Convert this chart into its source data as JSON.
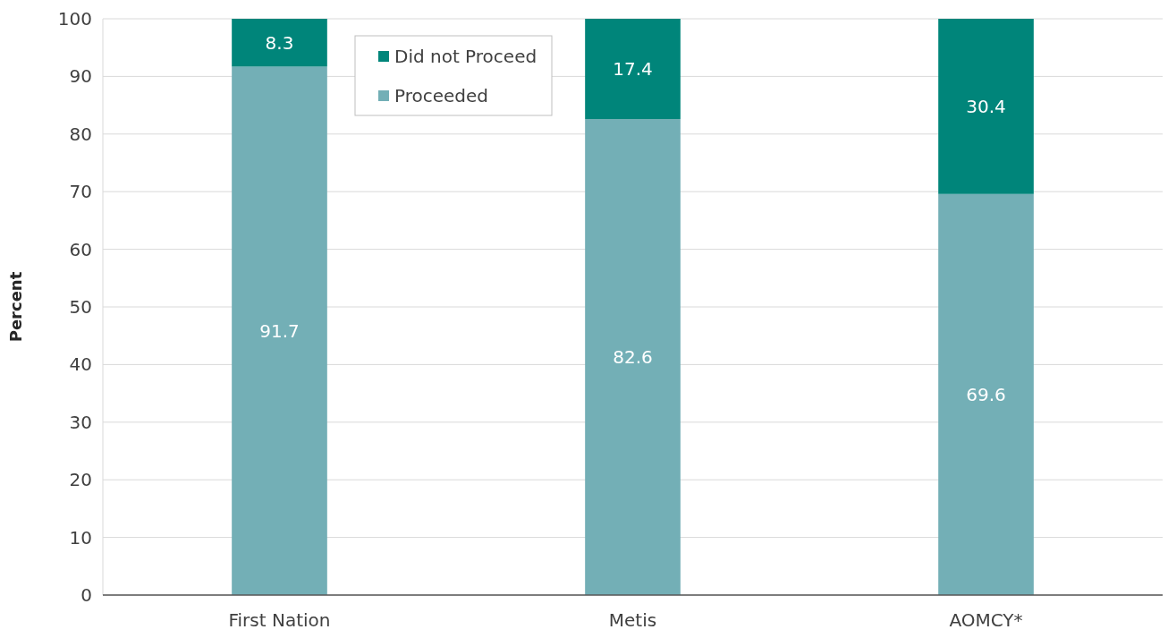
{
  "chart_data": {
    "type": "bar",
    "stacked": true,
    "ylabel": "Percent",
    "categories": [
      "First Nation",
      "Metis",
      "AOMCY*"
    ],
    "series": [
      {
        "name": "Proceeded",
        "color": "#73afb6",
        "values": [
          91.7,
          82.6,
          69.6
        ]
      },
      {
        "name": "Did not Proceed",
        "color": "#00857a",
        "values": [
          8.3,
          17.4,
          30.4
        ]
      }
    ],
    "ylim": [
      0,
      100
    ],
    "yticks": [
      0,
      10,
      20,
      30,
      40,
      50,
      60,
      70,
      80,
      90,
      100
    ],
    "grid": "y",
    "legend": "top left",
    "data_labels": true
  }
}
